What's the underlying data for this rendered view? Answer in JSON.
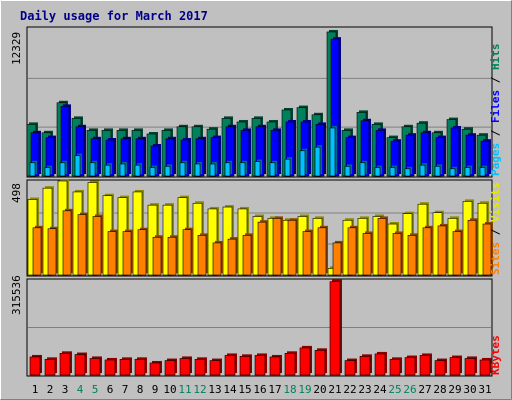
{
  "chart_data": {
    "type": "bar",
    "title": "Daily usage for March 2017",
    "days": [
      "1",
      "2",
      "3",
      "4",
      "5",
      "6",
      "7",
      "8",
      "9",
      "10",
      "11",
      "12",
      "13",
      "14",
      "15",
      "16",
      "17",
      "18",
      "19",
      "20",
      "21",
      "22",
      "23",
      "24",
      "25",
      "26",
      "27",
      "28",
      "29",
      "30",
      "31"
    ],
    "weekend_days": [
      "4",
      "5",
      "11",
      "12",
      "18",
      "19",
      "25",
      "26"
    ],
    "panels": [
      {
        "id": "hits",
        "ymax_label": "12329",
        "ymax": 12329,
        "legend": [
          {
            "text": "Hits",
            "color": "#00805c"
          },
          {
            "text": "Files",
            "color": "#0000ff"
          },
          {
            "text": "Pages",
            "color": "#00c0ff"
          }
        ],
        "series": [
          {
            "name": "Hits",
            "color": "#00805c",
            "values": [
              4300,
              3600,
              6100,
              4800,
              3800,
              3800,
              3800,
              3800,
              3500,
              3800,
              4100,
              4100,
              3900,
              4800,
              4500,
              4800,
              4500,
              5500,
              5700,
              5100,
              12000,
              3800,
              5300,
              4300,
              3200,
              4100,
              4400,
              3600,
              4700,
              3900,
              3400
            ]
          },
          {
            "name": "Files",
            "color": "#0000ff",
            "values": [
              3600,
              3200,
              5800,
              4100,
              3100,
              3000,
              3100,
              3100,
              2500,
              3100,
              3000,
              3100,
              3200,
              4100,
              3800,
              4100,
              3800,
              4500,
              4500,
              4300,
              11400,
              3200,
              4600,
              3800,
              2900,
              3400,
              3600,
              3200,
              4000,
              3400,
              2900
            ]
          },
          {
            "name": "Pages",
            "color": "#00c0ff",
            "values": [
              1100,
              700,
              1100,
              1700,
              1100,
              900,
              1000,
              900,
              700,
              800,
              1100,
              1000,
              1000,
              1100,
              1100,
              1200,
              1100,
              1400,
              2100,
              2400,
              4000,
              800,
              1100,
              700,
              700,
              600,
              900,
              800,
              600,
              700,
              700
            ]
          }
        ]
      },
      {
        "id": "visits",
        "ymax_label": "498",
        "ymax": 498,
        "legend": [
          {
            "text": "Visits",
            "color": "#e8e800"
          },
          {
            "text": "Sites",
            "color": "#ff8000"
          }
        ],
        "series": [
          {
            "name": "Visits",
            "color": "#ffff00",
            "values": [
              400,
              460,
              498,
              440,
              490,
              420,
              410,
              440,
              370,
              370,
              410,
              380,
              350,
              360,
              350,
              310,
              300,
              290,
              310,
              300,
              35,
              290,
              300,
              310,
              270,
              325,
              375,
              330,
              300,
              390,
              380
            ]
          },
          {
            "name": "Sites",
            "color": "#ff8000",
            "values": [
              250,
              245,
              340,
              320,
              310,
              230,
              230,
              240,
              200,
              200,
              240,
              210,
              170,
              190,
              210,
              280,
              300,
              290,
              230,
              250,
              170,
              250,
              220,
              300,
              220,
              210,
              250,
              260,
              230,
              290,
              270
            ]
          }
        ]
      },
      {
        "id": "kbytes",
        "ymax_label": "315536",
        "ymax": 315536,
        "legend": [
          {
            "text": "KBytes",
            "color": "#ff0000"
          }
        ],
        "series": [
          {
            "name": "KBytes",
            "color": "#ff0000",
            "values": [
              60000,
              52000,
              72000,
              68000,
              55000,
              50000,
              52000,
              52000,
              40000,
              48000,
              55000,
              52000,
              48000,
              65000,
              62000,
              65000,
              60000,
              72000,
              90000,
              82000,
              310000,
              48000,
              62000,
              70000,
              52000,
              58000,
              65000,
              48000,
              58000,
              55000,
              50000
            ]
          }
        ]
      }
    ]
  }
}
